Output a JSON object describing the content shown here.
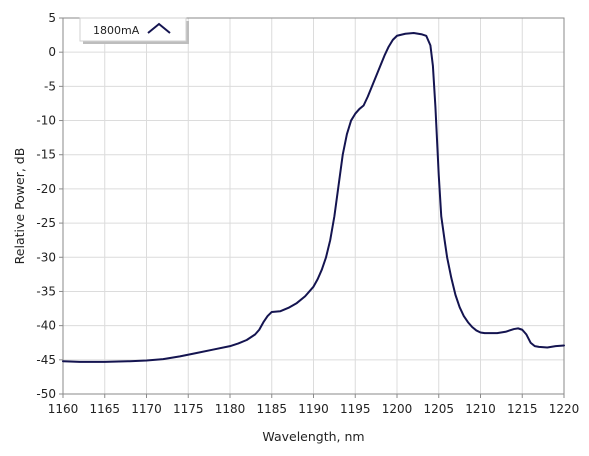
{
  "chart_data": {
    "type": "line",
    "xlabel": "Wavelength, nm",
    "ylabel": "Relative Power, dB",
    "xlim": [
      1160,
      1220
    ],
    "ylim": [
      -50,
      5
    ],
    "x_ticks": [
      1160,
      1165,
      1170,
      1175,
      1180,
      1185,
      1190,
      1195,
      1200,
      1205,
      1210,
      1215,
      1220
    ],
    "y_ticks": [
      5,
      0,
      -5,
      -10,
      -15,
      -20,
      -25,
      -30,
      -35,
      -40,
      -45,
      -50
    ],
    "grid": true,
    "legend": {
      "position": "top-left"
    },
    "line_color": "#141450",
    "series": [
      {
        "name": "1800mA",
        "x": [
          1160,
          1162,
          1165,
          1168,
          1170,
          1172,
          1174,
          1176,
          1178,
          1180,
          1181,
          1182,
          1183,
          1183.5,
          1184,
          1184.5,
          1185,
          1186,
          1187,
          1188,
          1189,
          1190,
          1190.5,
          1191,
          1191.5,
          1192,
          1192.5,
          1193,
          1193.5,
          1194,
          1194.5,
          1195,
          1195.5,
          1196,
          1196.5,
          1197,
          1197.5,
          1198,
          1198.5,
          1199,
          1199.5,
          1200,
          1201,
          1202,
          1203,
          1203.5,
          1204,
          1204.3,
          1204.6,
          1205,
          1205.3,
          1205.7,
          1206,
          1206.5,
          1207,
          1207.5,
          1208,
          1208.5,
          1209,
          1209.5,
          1210,
          1210.5,
          1211,
          1212,
          1213,
          1214,
          1214.5,
          1215,
          1215.5,
          1216,
          1216.5,
          1217,
          1218,
          1219,
          1220
        ],
        "values": [
          -45.2,
          -45.3,
          -45.3,
          -45.2,
          -45.1,
          -44.9,
          -44.5,
          -44.0,
          -43.5,
          -43.0,
          -42.6,
          -42.1,
          -41.3,
          -40.6,
          -39.5,
          -38.6,
          -38.0,
          -37.9,
          -37.4,
          -36.7,
          -35.7,
          -34.3,
          -33.2,
          -31.8,
          -30.0,
          -27.5,
          -24.0,
          -19.5,
          -15.0,
          -12.0,
          -10.0,
          -9.0,
          -8.3,
          -7.8,
          -6.5,
          -5.0,
          -3.5,
          -2.0,
          -0.5,
          0.8,
          1.8,
          2.4,
          2.7,
          2.8,
          2.6,
          2.4,
          1.0,
          -2.0,
          -8.0,
          -18.0,
          -24.0,
          -27.5,
          -30.0,
          -33.0,
          -35.5,
          -37.3,
          -38.6,
          -39.5,
          -40.2,
          -40.7,
          -41.0,
          -41.1,
          -41.1,
          -41.1,
          -40.9,
          -40.5,
          -40.4,
          -40.6,
          -41.3,
          -42.5,
          -43.0,
          -43.1,
          -43.2,
          -43.0,
          -42.9
        ]
      }
    ]
  }
}
